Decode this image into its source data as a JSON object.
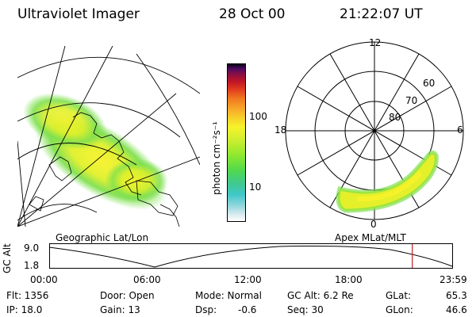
{
  "header": {
    "title": "Ultraviolet Imager",
    "date": "28 Oct 00",
    "time": "21:22:07 UT"
  },
  "colorbar": {
    "unit_label": "photon cm⁻²s⁻¹",
    "ticks": [
      "100",
      "10"
    ],
    "colors": [
      "#ffffff",
      "#cfe8ec",
      "#8fd6dd",
      "#3fc8c8",
      "#40c890",
      "#4fd84f",
      "#8fe82f",
      "#cfef2f",
      "#f7f22a",
      "#f7cf2a",
      "#f7a42a",
      "#f07a1f",
      "#e23a1f",
      "#c01428",
      "#901040",
      "#500a60",
      "#0a0018"
    ]
  },
  "geo_map": {
    "label": "Geographic Lat/Lon"
  },
  "polar_plot": {
    "label": "Apex MLat/MLT",
    "mlt_labels": {
      "top": "12",
      "left": "18",
      "right": "6",
      "bottom": "0"
    },
    "lat_labels": [
      "60",
      "70",
      "80"
    ]
  },
  "orbit_plot": {
    "ylabel": "GC Alt",
    "y_ticks": [
      "9.0",
      "1.8"
    ],
    "x_ticks": [
      "00:00",
      "06:00",
      "12:00",
      "18:00",
      "23:59"
    ],
    "current_time_fraction": 0.9,
    "marker_color": "#c02020"
  },
  "status": {
    "flt": "Flt: 1356",
    "ip": "IP: 18.0",
    "door": "Door: Open",
    "gain": "Gain: 13",
    "mode": "Mode: Normal",
    "dsp_label": "Dsp:",
    "dsp_value": "-0.6",
    "gc_alt": "GC Alt: 6.2 Re",
    "seq": "Seq: 30",
    "glat_label": "GLat:",
    "glat_value": "65.3",
    "glon_label": "GLon:",
    "glon_value": "46.6"
  }
}
